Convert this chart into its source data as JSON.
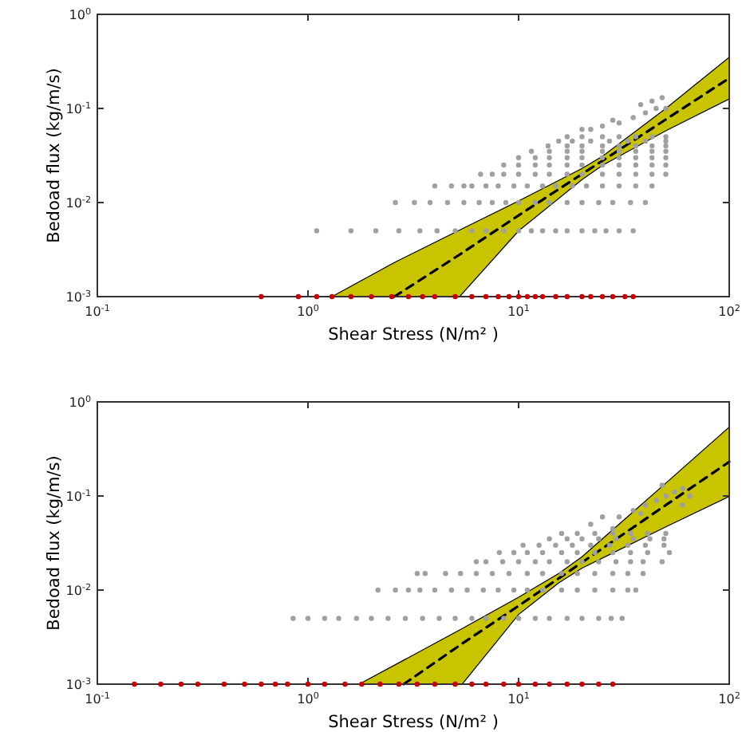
{
  "chart_data": [
    {
      "type": "scatter",
      "xlabel": "Shear Stress (N/m² )",
      "ylabel": "Bedoad flux (kg/m/s)",
      "log": "xy",
      "grid": false,
      "xlim": [
        0.1,
        100
      ],
      "ylim": [
        0.001,
        1
      ],
      "xticks": [
        {
          "value": 0.1,
          "label": "10$^{-1}$"
        },
        {
          "value": 1,
          "label": "10$^{0}$"
        },
        {
          "value": 10,
          "label": "10$^{1}$"
        },
        {
          "value": 100,
          "label": "10$^{2}$"
        }
      ],
      "yticks": [
        {
          "value": 0.001,
          "label": "10$^{-3}$"
        },
        {
          "value": 0.01,
          "label": "10$^{-2}$"
        },
        {
          "value": 0.1,
          "label": "10$^{-1}$"
        },
        {
          "value": 1,
          "label": "10$^{0}$"
        }
      ],
      "series": [
        {
          "color": "#a0a0a0",
          "marker": "circle",
          "x": [
            1.1,
            1.6,
            2.1,
            2.7,
            3.4,
            4.1,
            5,
            6,
            7,
            8.5,
            10,
            11.5,
            13,
            15,
            17,
            20,
            23,
            26,
            30,
            35,
            2.6,
            3.2,
            3.8,
            4.6,
            5.5,
            6.5,
            7.5,
            8.7,
            10,
            12,
            14,
            17,
            20,
            24,
            28,
            34,
            40,
            4,
            4.8,
            5.5,
            6,
            7,
            8,
            9.5,
            11,
            13,
            15,
            18,
            21,
            25,
            30,
            36,
            43,
            6.6,
            7.5,
            8.5,
            10,
            12,
            14,
            17,
            20,
            25,
            30,
            36,
            43,
            50,
            8.5,
            10,
            12,
            14,
            17,
            20,
            25,
            30,
            36,
            43,
            50,
            10,
            12,
            14,
            17,
            20,
            25,
            30,
            36,
            43,
            50,
            11.5,
            14,
            17,
            20,
            25,
            30,
            36,
            43,
            50,
            13.8,
            17,
            20,
            25,
            30,
            36,
            43,
            50,
            15.5,
            18,
            22,
            27,
            33,
            40,
            50,
            17,
            20,
            25,
            30,
            36,
            43,
            50,
            20,
            25,
            30,
            35,
            40,
            45,
            50,
            38,
            48,
            28,
            22,
            43
          ],
          "values": [
            0.005,
            0.005,
            0.005,
            0.005,
            0.005,
            0.005,
            0.005,
            0.005,
            0.005,
            0.005,
            0.005,
            0.005,
            0.005,
            0.005,
            0.005,
            0.005,
            0.005,
            0.005,
            0.005,
            0.005,
            0.01,
            0.01,
            0.01,
            0.01,
            0.01,
            0.01,
            0.01,
            0.01,
            0.01,
            0.01,
            0.01,
            0.01,
            0.01,
            0.01,
            0.01,
            0.01,
            0.01,
            0.015,
            0.015,
            0.015,
            0.015,
            0.015,
            0.015,
            0.015,
            0.015,
            0.015,
            0.015,
            0.015,
            0.015,
            0.015,
            0.015,
            0.015,
            0.015,
            0.02,
            0.02,
            0.02,
            0.02,
            0.02,
            0.02,
            0.02,
            0.02,
            0.02,
            0.02,
            0.02,
            0.02,
            0.02,
            0.025,
            0.025,
            0.025,
            0.025,
            0.025,
            0.025,
            0.025,
            0.025,
            0.025,
            0.025,
            0.025,
            0.03,
            0.03,
            0.03,
            0.03,
            0.03,
            0.03,
            0.03,
            0.03,
            0.03,
            0.03,
            0.035,
            0.035,
            0.035,
            0.035,
            0.035,
            0.035,
            0.035,
            0.035,
            0.035,
            0.04,
            0.04,
            0.04,
            0.04,
            0.04,
            0.04,
            0.04,
            0.04,
            0.045,
            0.045,
            0.045,
            0.045,
            0.045,
            0.045,
            0.045,
            0.05,
            0.05,
            0.05,
            0.05,
            0.05,
            0.05,
            0.05,
            0.06,
            0.065,
            0.07,
            0.08,
            0.09,
            0.1,
            0.1,
            0.11,
            0.13,
            0.075,
            0.06,
            0.12
          ]
        },
        {
          "type": "line",
          "color": "#000000",
          "line_style": "dashed",
          "marker": "none",
          "x": [
            1.3,
            2.57,
            5.25,
            10,
            20,
            25,
            50,
            100
          ],
          "values": [
            null,
            0.001,
            0.0028,
            0.0073,
            0.0201,
            0.0278,
            0.0764,
            0.21
          ],
          "upper": [
            0.001,
            0.0023,
            0.0051,
            0.0104,
            0.023,
            0.031,
            0.1,
            0.35
          ],
          "lower": [
            0.001,
            0.001,
            0.001,
            0.005,
            0.0175,
            0.0248,
            0.058,
            0.126
          ]
        },
        {
          "color": "#cc0000",
          "marker": "circle",
          "x": [
            0.6,
            0.9,
            1.1,
            1.3,
            1.6,
            2,
            2.5,
            3,
            3.5,
            4,
            5,
            6,
            7,
            8,
            9,
            10,
            11,
            12,
            13,
            15,
            17,
            20,
            22,
            25,
            28,
            32,
            35
          ],
          "values": [
            0.001,
            0.001,
            0.001,
            0.001,
            0.001,
            0.001,
            0.001,
            0.001,
            0.001,
            0.001,
            0.001,
            0.001,
            0.001,
            0.001,
            0.001,
            0.001,
            0.001,
            0.001,
            0.001,
            0.001,
            0.001,
            0.001,
            0.001,
            0.001,
            0.001,
            0.001,
            0.001
          ]
        }
      ]
    },
    {
      "type": "scatter",
      "xlabel": "Shear Stress (N/m² )",
      "ylabel": "Bedoad flux (kg/m/s)",
      "log": "xy",
      "grid": false,
      "xlim": [
        0.1,
        100
      ],
      "ylim": [
        0.001,
        1
      ],
      "xticks": [
        {
          "value": 0.1,
          "label": "10$^{-1}$"
        },
        {
          "value": 1,
          "label": "10$^{0}$"
        },
        {
          "value": 10,
          "label": "10$^{1}$"
        },
        {
          "value": 100,
          "label": "10$^{2}$"
        }
      ],
      "yticks": [
        {
          "value": 0.001,
          "label": "10$^{-3}$"
        },
        {
          "value": 0.01,
          "label": "10$^{-2}$"
        },
        {
          "value": 0.1,
          "label": "10$^{-1}$"
        },
        {
          "value": 1,
          "label": "10$^{0}$"
        }
      ],
      "series": [
        {
          "color": "#a0a0a0",
          "marker": "circle",
          "x": [
            0.85,
            1,
            1.2,
            1.4,
            1.7,
            2,
            2.4,
            2.9,
            3.5,
            4.2,
            5,
            6,
            7,
            8.5,
            10,
            12,
            14,
            17,
            20,
            24,
            27.5,
            31,
            2.15,
            2.6,
            3,
            3.4,
            4,
            4.8,
            5.7,
            6.8,
            8,
            9.5,
            11,
            13,
            16,
            19,
            23,
            28,
            33,
            36,
            3.3,
            3.6,
            4.5,
            5.3,
            6.3,
            7.5,
            9,
            11,
            13,
            16,
            19,
            23,
            28,
            33,
            39,
            6.3,
            7,
            8.4,
            10,
            12,
            14,
            17,
            20,
            24,
            29,
            34,
            39,
            48,
            8.1,
            9.5,
            11,
            13,
            16,
            19,
            23,
            28,
            34,
            41,
            52,
            10.5,
            12.5,
            15,
            18,
            22,
            27,
            33,
            40,
            49,
            14,
            17,
            20,
            24,
            29,
            35,
            42,
            49,
            16,
            19,
            23,
            28,
            34,
            41,
            50,
            22,
            25,
            30,
            35,
            40,
            45,
            50,
            55,
            60,
            28,
            48,
            38,
            65,
            60
          ],
          "values": [
            0.005,
            0.005,
            0.005,
            0.005,
            0.005,
            0.005,
            0.005,
            0.005,
            0.005,
            0.005,
            0.005,
            0.005,
            0.005,
            0.005,
            0.005,
            0.005,
            0.005,
            0.005,
            0.005,
            0.005,
            0.005,
            0.005,
            0.01,
            0.01,
            0.01,
            0.01,
            0.01,
            0.01,
            0.01,
            0.01,
            0.01,
            0.01,
            0.01,
            0.01,
            0.01,
            0.01,
            0.01,
            0.01,
            0.01,
            0.01,
            0.015,
            0.015,
            0.015,
            0.015,
            0.015,
            0.015,
            0.015,
            0.015,
            0.015,
            0.015,
            0.015,
            0.015,
            0.015,
            0.015,
            0.015,
            0.02,
            0.02,
            0.02,
            0.02,
            0.02,
            0.02,
            0.02,
            0.02,
            0.02,
            0.02,
            0.02,
            0.02,
            0.02,
            0.025,
            0.025,
            0.025,
            0.025,
            0.025,
            0.025,
            0.025,
            0.025,
            0.025,
            0.025,
            0.025,
            0.03,
            0.03,
            0.03,
            0.03,
            0.03,
            0.03,
            0.03,
            0.03,
            0.03,
            0.035,
            0.035,
            0.035,
            0.035,
            0.035,
            0.035,
            0.035,
            0.035,
            0.04,
            0.04,
            0.04,
            0.04,
            0.04,
            0.04,
            0.04,
            0.05,
            0.06,
            0.06,
            0.07,
            0.08,
            0.09,
            0.1,
            0.11,
            0.12,
            0.045,
            0.13,
            0.065,
            0.1,
            0.08
          ]
        },
        {
          "type": "line",
          "color": "#000000",
          "line_style": "dashed",
          "marker": "none",
          "x": [
            1.75,
            2.85,
            5.4,
            10,
            15.5,
            20,
            50,
            100
          ],
          "values": [
            null,
            0.001,
            0.0027,
            0.0068,
            0.0133,
            0.0197,
            0.08,
            0.231
          ],
          "upper": [
            0.001,
            0.0018,
            0.0039,
            0.0084,
            0.015,
            0.0226,
            0.137,
            0.54
          ],
          "lower": [
            0.001,
            0.001,
            0.001,
            0.0055,
            0.0119,
            0.0171,
            0.047,
            0.099
          ]
        },
        {
          "color": "#cc0000",
          "marker": "circle",
          "x": [
            0.15,
            0.2,
            0.25,
            0.3,
            0.4,
            0.5,
            0.6,
            0.7,
            0.8,
            1,
            1.2,
            1.5,
            1.8,
            2.2,
            2.7,
            3.3,
            4,
            5,
            6,
            7,
            8.5,
            10,
            12,
            14,
            17,
            20,
            24,
            28
          ],
          "values": [
            0.001,
            0.001,
            0.001,
            0.001,
            0.001,
            0.001,
            0.001,
            0.001,
            0.001,
            0.001,
            0.001,
            0.001,
            0.001,
            0.001,
            0.001,
            0.001,
            0.001,
            0.001,
            0.001,
            0.001,
            0.001,
            0.001,
            0.001,
            0.001,
            0.001,
            0.001,
            0.001,
            0.001
          ]
        }
      ]
    }
  ]
}
